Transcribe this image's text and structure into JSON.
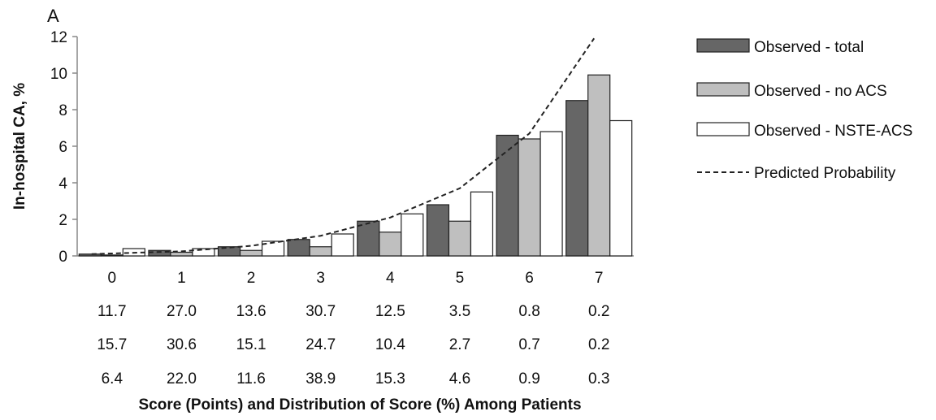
{
  "chart_data": {
    "type": "bar",
    "panel_label": "A",
    "xlabel": "Score (Points) and Distribution of Score (%) Among Patients",
    "ylabel": "In-hospital CA, %",
    "ylim": [
      0,
      12
    ],
    "yticks": [
      "0",
      "2",
      "4",
      "6",
      "8",
      "10",
      "12"
    ],
    "categories": [
      "0",
      "1",
      "2",
      "3",
      "4",
      "5",
      "6",
      "7"
    ],
    "grid": false,
    "legend_position": "right",
    "series": [
      {
        "name": "Observed - total",
        "kind": "bar",
        "color": "#666666",
        "values": [
          0.1,
          0.3,
          0.5,
          0.9,
          1.9,
          2.8,
          6.6,
          8.5
        ]
      },
      {
        "name": "Observed - no ACS",
        "kind": "bar",
        "color": "#bfbfbf",
        "values": [
          0.05,
          0.2,
          0.3,
          0.5,
          1.3,
          1.9,
          6.4,
          9.9
        ]
      },
      {
        "name": "Observed - NSTE-ACS",
        "kind": "bar",
        "color": "#ffffff",
        "values": [
          0.4,
          0.4,
          0.8,
          1.2,
          2.3,
          3.5,
          6.8,
          7.4
        ]
      },
      {
        "name": "Predicted Probability",
        "kind": "line",
        "style": "dashed",
        "color": "#222222",
        "values": [
          0.1,
          0.25,
          0.55,
          1.1,
          2.1,
          3.7,
          6.7,
          11.9
        ]
      }
    ],
    "distribution_rows": [
      [
        "11.7",
        "27.0",
        "13.6",
        "30.7",
        "12.5",
        "3.5",
        "0.8",
        "0.2"
      ],
      [
        "15.7",
        "30.6",
        "15.1",
        "24.7",
        "10.4",
        "2.7",
        "0.7",
        "0.2"
      ],
      [
        "6.4",
        "22.0",
        "11.6",
        "38.9",
        "15.3",
        "4.6",
        "0.9",
        "0.3"
      ]
    ]
  }
}
